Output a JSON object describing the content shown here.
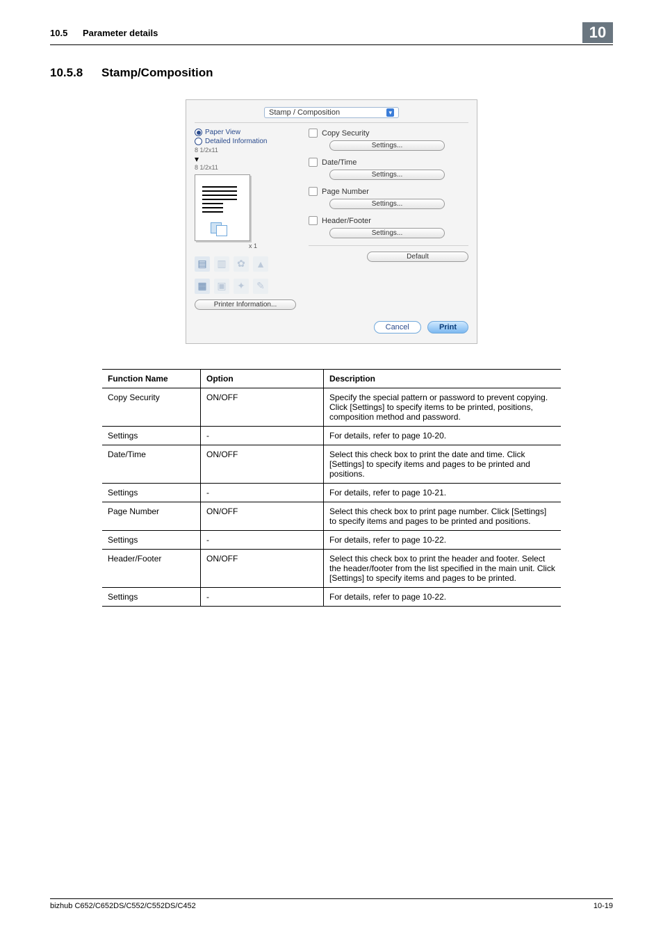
{
  "header": {
    "section_number": "10.5",
    "section_title": "Parameter details",
    "chapter_badge": "10"
  },
  "title": {
    "number": "10.5.8",
    "text": "Stamp/Composition"
  },
  "dialog": {
    "dropdown": "Stamp / Composition",
    "left": {
      "radio_paper_view": "Paper View",
      "radio_detailed": "Detailed Information",
      "dim1": "8 1/2x11",
      "arrow": "▾",
      "dim2": "8 1/2x11",
      "x1": "x 1",
      "printer_info": "Printer Information..."
    },
    "sections": {
      "copy_security": {
        "label": "Copy Security",
        "settings": "Settings..."
      },
      "date_time": {
        "label": "Date/Time",
        "settings": "Settings..."
      },
      "page_number": {
        "label": "Page Number",
        "settings": "Settings..."
      },
      "header_footer": {
        "label": "Header/Footer",
        "settings": "Settings..."
      }
    },
    "default_btn": "Default",
    "cancel_btn": "Cancel",
    "print_btn": "Print"
  },
  "table": {
    "headers": {
      "func": "Function Name",
      "option": "Option",
      "desc": "Description"
    },
    "rows": [
      {
        "func": "Copy Security",
        "option": "ON/OFF",
        "desc": "Specify the special pattern or password to prevent copying. Click [Settings] to specify items to be printed, positions, composition method and password."
      },
      {
        "func": "Settings",
        "option": "-",
        "desc": "For details, refer to page 10-20."
      },
      {
        "func": "Date/Time",
        "option": "ON/OFF",
        "desc": "Select this check box to print the date and time. Click [Settings] to specify items and pages to be printed and positions."
      },
      {
        "func": "Settings",
        "option": "-",
        "desc": "For details, refer to page 10-21."
      },
      {
        "func": "Page Number",
        "option": "ON/OFF",
        "desc": "Select this check box to print page number. Click [Settings] to specify items and pages to be printed and positions."
      },
      {
        "func": "Settings",
        "option": "-",
        "desc": "For details, refer to page 10-22."
      },
      {
        "func": "Header/Footer",
        "option": "ON/OFF",
        "desc": "Select this check box to print the header and footer. Select the header/footer from the list specified in the main unit. Click [Settings] to specify items and pages to be printed."
      },
      {
        "func": "Settings",
        "option": "-",
        "desc": "For details, refer to page 10-22."
      }
    ]
  },
  "footer": {
    "product": "bizhub C652/C652DS/C552/C552DS/C452",
    "page": "10-19"
  }
}
